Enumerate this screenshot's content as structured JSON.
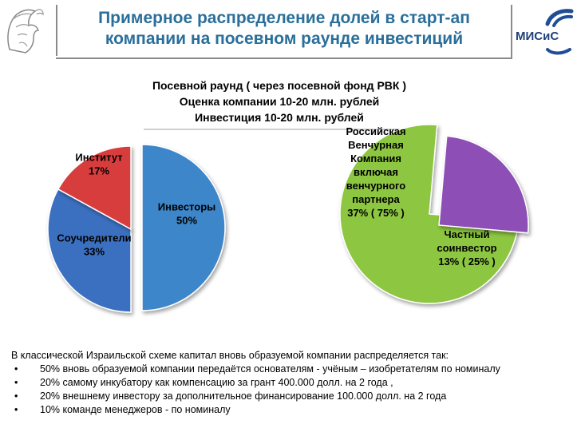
{
  "title": {
    "line1": "Примерное распределение долей в старт-ап",
    "line2": "компании на посевном раунде инвестиций"
  },
  "logo": {
    "text": "МИСиС"
  },
  "subtitle": {
    "line1": "Посевной раунд ( через посевной фонд РВК )",
    "line2": "Оценка компании  10-20 млн. рублей",
    "line3": "Инвестиция   10-20  млн. рублей"
  },
  "chart_data": [
    {
      "type": "pie",
      "slices": [
        {
          "label_lines": [
            "Инвесторы",
            "50%"
          ],
          "value": 50,
          "color": "#3e86c9"
        },
        {
          "label_lines": [
            "Соучредители",
            "33%"
          ],
          "value": 33,
          "color": "#3b6fc0"
        },
        {
          "label_lines": [
            "Институт",
            "17%"
          ],
          "value": 17,
          "color": "#d83c3c"
        }
      ]
    },
    {
      "type": "pie",
      "slices": [
        {
          "label_lines": [
            "Российская",
            "Венчурная",
            "Компания",
            "включая",
            "венчурного",
            "партнера",
            "37% ( 75% )"
          ],
          "value": 75,
          "color": "#8dc63f"
        },
        {
          "label_lines": [
            "Частный",
            "соинвестор",
            "13% ( 25% )"
          ],
          "value": 25,
          "color": "#8d4fb6"
        }
      ]
    }
  ],
  "footer": {
    "intro": "В классической Израильской схеме капитал вновь образуемой компании распределяется так:",
    "bullets": [
      "50% вновь образуемой компании передаётся основателям - учёным – изобретателям по номиналу",
      "20% самому инкубатору как компенсацию  за грант 400.000 долл. на  2 года  ,",
      "20% внешнему  инвестору за дополнительное финансирование 100.000 долл. на 2 года",
      "10% команде менеджеров - по номиналу"
    ],
    "bullet_char": "•"
  },
  "colors": {
    "title": "#2a6f9b",
    "bar": "#8a8a8a",
    "logo_arc": "#1f4e96"
  }
}
